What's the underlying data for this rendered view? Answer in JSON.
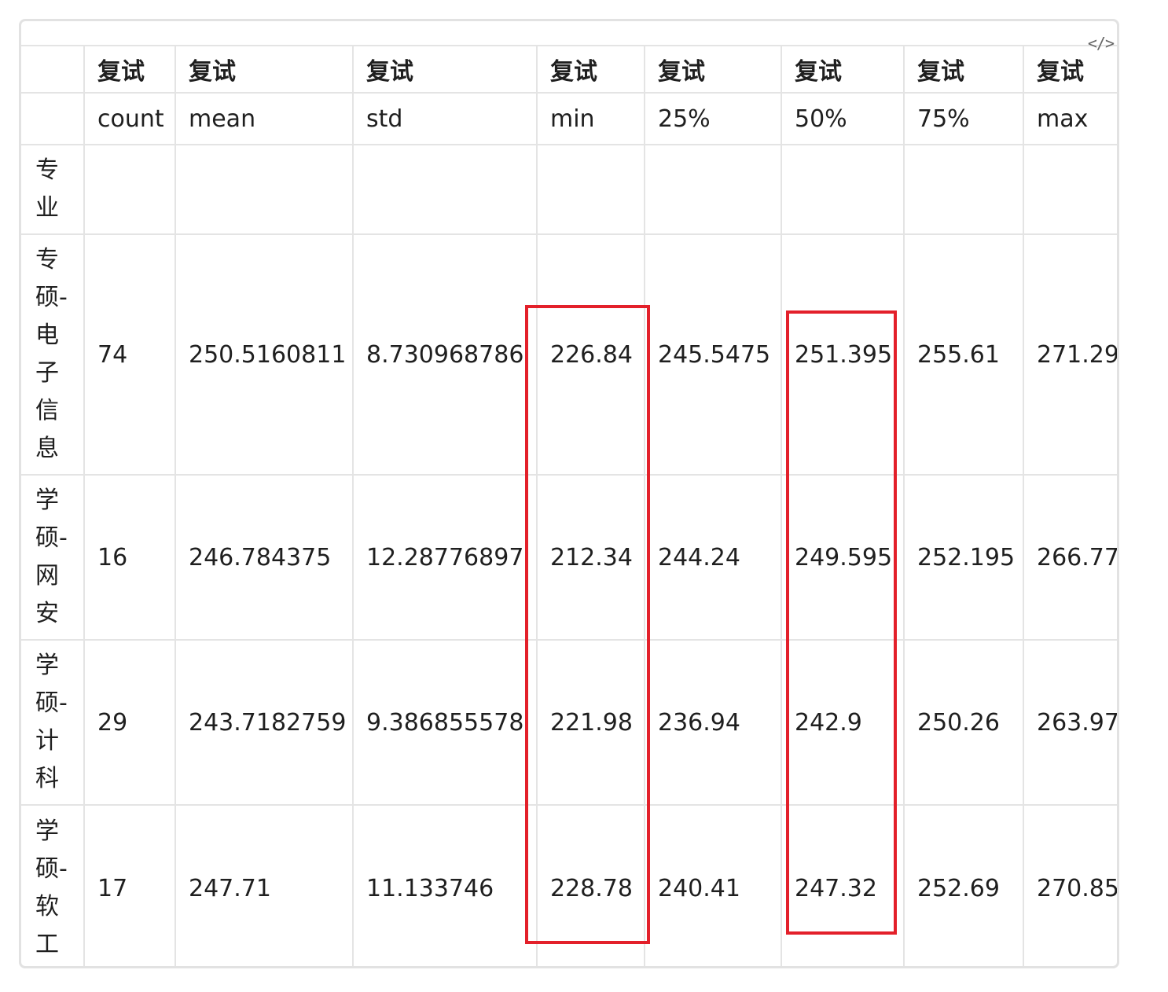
{
  "toolbar": {
    "code_toggle_label": "</>"
  },
  "table": {
    "header_row1": [
      "",
      "复试",
      "复试",
      "复试",
      "复试",
      "复试",
      "复试",
      "复试",
      "复试"
    ],
    "header_row2": [
      "",
      "count",
      "mean",
      "std",
      "min",
      "25%",
      "50%",
      "75%",
      "max"
    ],
    "index_name": "专业",
    "rows": [
      {
        "label": "专硕-电子信息",
        "values": [
          "74",
          "250.5160811",
          "8.730968786",
          "226.84",
          "245.5475",
          "251.395",
          "255.61",
          "271.29"
        ]
      },
      {
        "label": "学硕-网安",
        "values": [
          "16",
          "246.784375",
          "12.28776897",
          "212.34",
          "244.24",
          "249.595",
          "252.195",
          "266.77"
        ]
      },
      {
        "label": "学硕-计科",
        "values": [
          "29",
          "243.7182759",
          "9.386855578",
          "221.98",
          "236.94",
          "242.9",
          "250.26",
          "263.97"
        ]
      },
      {
        "label": "学硕-软工",
        "values": [
          "17",
          "247.71",
          "11.133746",
          "228.78",
          "240.41",
          "247.32",
          "252.69",
          "270.85"
        ]
      }
    ]
  },
  "annotations": {
    "highlight_color": "#e3202a",
    "highlighted_columns": [
      "min",
      "50%"
    ]
  }
}
